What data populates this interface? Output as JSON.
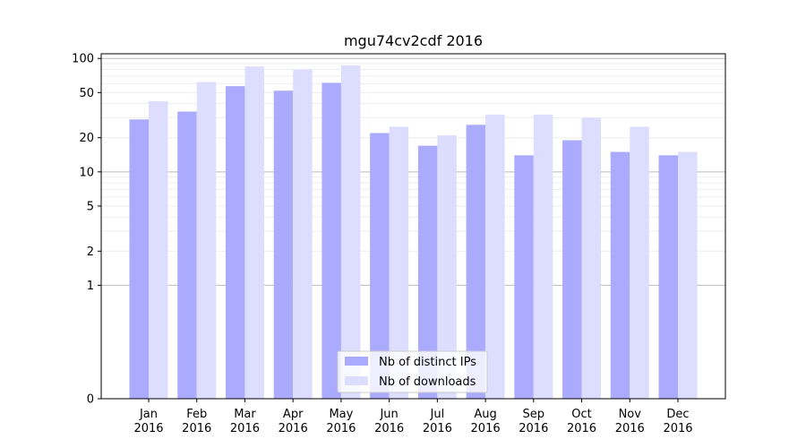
{
  "chart_data": {
    "type": "bar",
    "title": "mgu74cv2cdf 2016",
    "xlabel": "",
    "ylabel": "",
    "y_scale": "symlog",
    "ylim": [
      0,
      110
    ],
    "y_ticks": [
      0,
      1,
      2,
      5,
      10,
      20,
      50,
      100
    ],
    "categories": [
      [
        "Jan",
        "2016"
      ],
      [
        "Feb",
        "2016"
      ],
      [
        "Mar",
        "2016"
      ],
      [
        "Apr",
        "2016"
      ],
      [
        "May",
        "2016"
      ],
      [
        "Jun",
        "2016"
      ],
      [
        "Jul",
        "2016"
      ],
      [
        "Aug",
        "2016"
      ],
      [
        "Sep",
        "2016"
      ],
      [
        "Oct",
        "2016"
      ],
      [
        "Nov",
        "2016"
      ],
      [
        "Dec",
        "2016"
      ]
    ],
    "series": [
      {
        "name": "Nb of distinct IPs",
        "color": "#aaaaff",
        "values": [
          29,
          34,
          57,
          52,
          61,
          22,
          17,
          26,
          14,
          19,
          15,
          14
        ]
      },
      {
        "name": "Nb of downloads",
        "color": "#ddddff",
        "values": [
          42,
          62,
          85,
          80,
          87,
          25,
          21,
          32,
          32,
          30,
          25,
          15
        ]
      }
    ],
    "legend_position": "lower-center",
    "grid": true
  }
}
